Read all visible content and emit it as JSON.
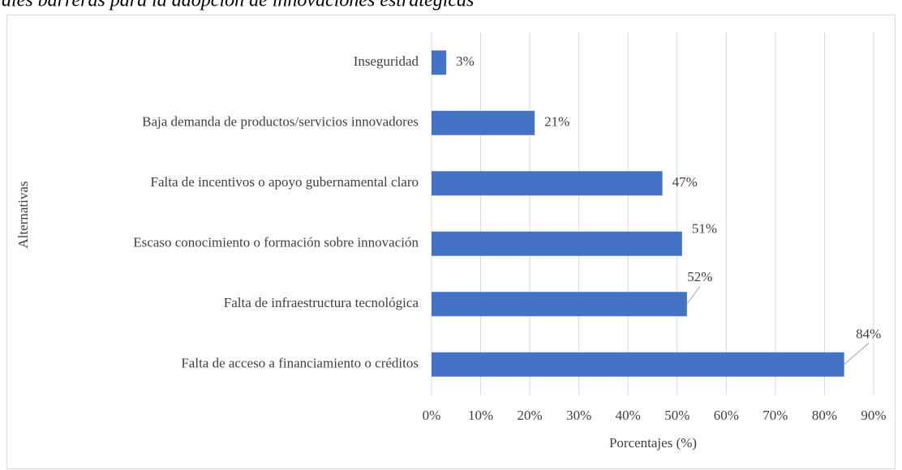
{
  "chart_data": {
    "type": "bar",
    "orientation": "horizontal",
    "title": "ales barreras para la adopción de innovaciones estratégicas",
    "categories": [
      "Inseguridad",
      "Baja demanda de productos/servicios innovadores",
      "Falta de incentivos o apoyo gubernamental claro",
      "Escaso conocimiento o formación sobre innovación",
      "Falta de infraestructura tecnológica",
      "Falta de acceso a financiamiento o créditos"
    ],
    "values": [
      3,
      21,
      47,
      51,
      52,
      84
    ],
    "value_labels": [
      "3%",
      "21%",
      "47%",
      "51%",
      "52%",
      "84%"
    ],
    "color": "#4472c4",
    "xlim": [
      0,
      90
    ],
    "xticks": [
      {
        "value": 0,
        "label": "0%"
      },
      {
        "value": 10,
        "label": "10%"
      },
      {
        "value": 20,
        "label": "20%"
      },
      {
        "value": 30,
        "label": "30%"
      },
      {
        "value": 40,
        "label": "40%"
      },
      {
        "value": 50,
        "label": "50%"
      },
      {
        "value": 60,
        "label": "60%"
      },
      {
        "value": 70,
        "label": "70%"
      },
      {
        "value": 80,
        "label": "80%"
      },
      {
        "value": 90,
        "label": "90%"
      }
    ],
    "x_label": "Porcentajes (%)",
    "y_label": "Alternativas",
    "grid": true
  }
}
